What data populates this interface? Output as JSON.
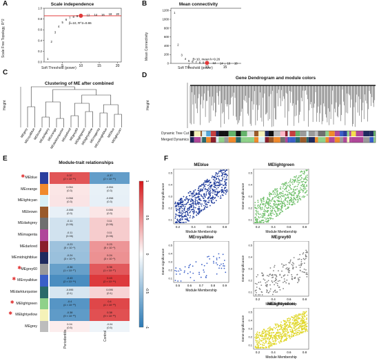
{
  "panels": {
    "A": {
      "label": "A",
      "title": "Scale independence",
      "xlabel": "Soft Threshold (power)",
      "ylabel": "Scale Free Topology, R^2",
      "annotation": "β=10, R^2=0.86",
      "xticks": [
        "5",
        "10",
        "15",
        "20"
      ],
      "yticks": [
        "0.0",
        "0.2",
        "0.4",
        "0.6",
        "0.8",
        "1.0"
      ]
    },
    "B": {
      "label": "B",
      "title": "Mean connectivity",
      "xlabel": "Soft Threshold (power)",
      "ylabel": "Mean Connectivity",
      "annotation": "β=10, mean k=9.26",
      "xticks": [
        "5",
        "10",
        "15",
        "20"
      ],
      "yticks": [
        "0",
        "200",
        "400",
        "600",
        "800",
        "1000",
        "1200"
      ]
    },
    "C": {
      "label": "C",
      "title": "Clustering of ME after combined",
      "ylabel": "Height",
      "leaves": [
        "MEgrey",
        "MEroyalblue",
        "MEbrown",
        "MEdarkgrey",
        "MEorange",
        "MEdarkturquoise",
        "MEdarkred",
        "MEgrey60",
        "MElightgreen",
        "MElightyellow",
        "MEmagenta",
        "MEmidnightblue",
        "MEblue",
        "MElightcyan"
      ]
    },
    "D": {
      "label": "D",
      "title": "Gene Dendrogram and module colors",
      "ylabel": "Height",
      "track1": "Dynamic Tree Cut",
      "track2": "Merged Dynamics"
    },
    "E": {
      "label": "E",
      "title": "Module-trait relationships",
      "columns": [
        "Periodontitis",
        "Control"
      ],
      "scale_ticks": [
        "1",
        "0.5",
        "0",
        "-0.5",
        "-1"
      ],
      "rows": [
        {
          "name": "MEblue",
          "color": "#2a3f9e",
          "star": true,
          "p": "0.37",
          "pp": "(2 × 10⁻¹¹)",
          "c": "-0.37",
          "cp": "(2 × 10⁻¹¹)"
        },
        {
          "name": "MEorange",
          "color": "#f08a2c",
          "star": false,
          "p": "0.054",
          "pp": "(0.3)",
          "c": "-0.054",
          "cp": "(0.3)"
        },
        {
          "name": "MElightcyan",
          "color": "#d8f0f5",
          "star": false,
          "p": "0.058",
          "pp": "(0.3)",
          "c": "-0.058",
          "cp": "(0.3)"
        },
        {
          "name": "MEbrown",
          "color": "#9a5a2a",
          "star": false,
          "p": "-0.055",
          "pp": "(0.3)",
          "c": "0.055",
          "cp": "(0.3)"
        },
        {
          "name": "MEdarkgrey",
          "color": "#6f6f6f",
          "star": false,
          "p": "-0.11",
          "pp": "(0.06)",
          "c": "0.11",
          "cp": "(0.06)"
        },
        {
          "name": "MEmagenta",
          "color": "#b0479a",
          "star": false,
          "p": "-0.11",
          "pp": "(0.06)",
          "c": "0.11",
          "cp": "(0.06)"
        },
        {
          "name": "MEdarkred",
          "color": "#8a1f2c",
          "star": false,
          "p": "-0.23",
          "pp": "(5 × 10⁻⁵)",
          "c": "0.23",
          "cp": "(5 × 10⁻⁵)"
        },
        {
          "name": "MEmidnightblue",
          "color": "#1f2a5e",
          "star": false,
          "p": "-0.24",
          "pp": "(3 × 10⁻⁵)",
          "c": "0.24",
          "cp": "(3 × 10⁻⁵)"
        },
        {
          "name": "MEgrey60",
          "color": "#9a9a9a",
          "star": true,
          "p": "-0.36",
          "pp": "(1 × 10⁻¹⁰)",
          "c": "0.36",
          "cp": "(1 × 10⁻¹⁰)"
        },
        {
          "name": "MEroyalblue",
          "color": "#3a5fc8",
          "star": true,
          "p": "-0.43",
          "pp": "(2 × 10⁻¹⁴)",
          "c": "0.43",
          "cp": "(2 × 10⁻¹⁴)"
        },
        {
          "name": "MEdarkturquoise",
          "color": "#2a6a6a",
          "star": false,
          "p": "-0.095",
          "pp": "(0.1)",
          "c": "0.095",
          "cp": "(0.1)"
        },
        {
          "name": "MElightgreen",
          "color": "#8fd18a",
          "star": true,
          "p": "-0.4",
          "pp": "(4 × 10⁻¹³)",
          "c": "0.4",
          "cp": "(4 × 10⁻¹³)"
        },
        {
          "name": "MElightyellow",
          "color": "#f5f2b8",
          "star": true,
          "p": "-0.38",
          "pp": "(9 × 10⁻¹²)",
          "c": "0.38",
          "cp": "(9 × 10⁻¹²)"
        },
        {
          "name": "MEgrey",
          "color": "#bdbdbd",
          "star": false,
          "p": "0.04",
          "pp": "(0.5)",
          "c": "-0.04",
          "cp": "(0.5)"
        }
      ]
    },
    "F": {
      "label": "F",
      "xlabel": "Module Membership",
      "ylabel": "Gene significance",
      "plots": [
        {
          "title": "MEblue",
          "color": "#1f3b9a",
          "xticks": [
            "0.2",
            "0.4",
            "0.6",
            "0.8"
          ],
          "yticks": [
            "0.1",
            "0.2",
            "0.3",
            "0.4",
            "0.5"
          ]
        },
        {
          "title": "MElightgreen",
          "color": "#6fbf6a",
          "xticks": [
            "0.2",
            "0.4",
            "0.6",
            "0.8"
          ],
          "yticks": [
            "0.1",
            "0.2",
            "0.3",
            "0.4",
            "0.5"
          ]
        },
        {
          "title": "MEroyalblue",
          "color": "#3a5fc8",
          "xticks": [
            "0.5",
            "0.6",
            "0.7",
            "0.8",
            "0.9"
          ],
          "yticks": [
            "0.1",
            "0.2",
            "0.3",
            "0.4",
            "0.5"
          ]
        },
        {
          "title": "MEgrey60",
          "color": "#7d7d7d",
          "xticks": [
            "0.2",
            "0.4",
            "0.6",
            "0.8"
          ],
          "yticks": [
            "0.1",
            "0.2",
            "0.3",
            "0.4",
            "0.5"
          ]
        },
        {
          "title": "MElightyellow",
          "color": "#e0d72a",
          "xticks": [
            "0.2",
            "0.4",
            "0.6",
            "0.8"
          ],
          "yticks": [
            "0.1",
            "0.2",
            "0.3",
            "0.4",
            "0.5"
          ]
        }
      ]
    }
  },
  "chart_data": [
    {
      "type": "scatter",
      "title": "Scale independence",
      "xlabel": "Soft Threshold (power)",
      "ylabel": "Scale Free Topology, R^2",
      "x": [
        1,
        2,
        3,
        4,
        5,
        6,
        7,
        8,
        9,
        10,
        12,
        14,
        16,
        18,
        20
      ],
      "y": [
        0.06,
        0.38,
        0.55,
        0.66,
        0.74,
        0.79,
        0.82,
        0.84,
        0.85,
        0.86,
        0.87,
        0.88,
        0.88,
        0.89,
        0.89
      ],
      "xlim": [
        0,
        21
      ],
      "ylim": [
        0,
        1.0
      ]
    },
    {
      "type": "scatter",
      "title": "Mean connectivity",
      "xlabel": "Soft Threshold (power)",
      "ylabel": "Mean Connectivity",
      "x": [
        1,
        2,
        3,
        4,
        5,
        6,
        7,
        8,
        9,
        10,
        12,
        14,
        16,
        18,
        20
      ],
      "y": [
        1150,
        420,
        190,
        100,
        58,
        36,
        24,
        17,
        12,
        9.26,
        5,
        3,
        2,
        1.5,
        1
      ],
      "xlim": [
        0,
        21
      ],
      "ylim": [
        0,
        1250
      ]
    }
  ],
  "styling": {
    "threshold_line": "#e02020",
    "highlight_point": "#e03a3a",
    "heat_pos": "#d7191c",
    "heat_neg": "#2c7bb6"
  }
}
